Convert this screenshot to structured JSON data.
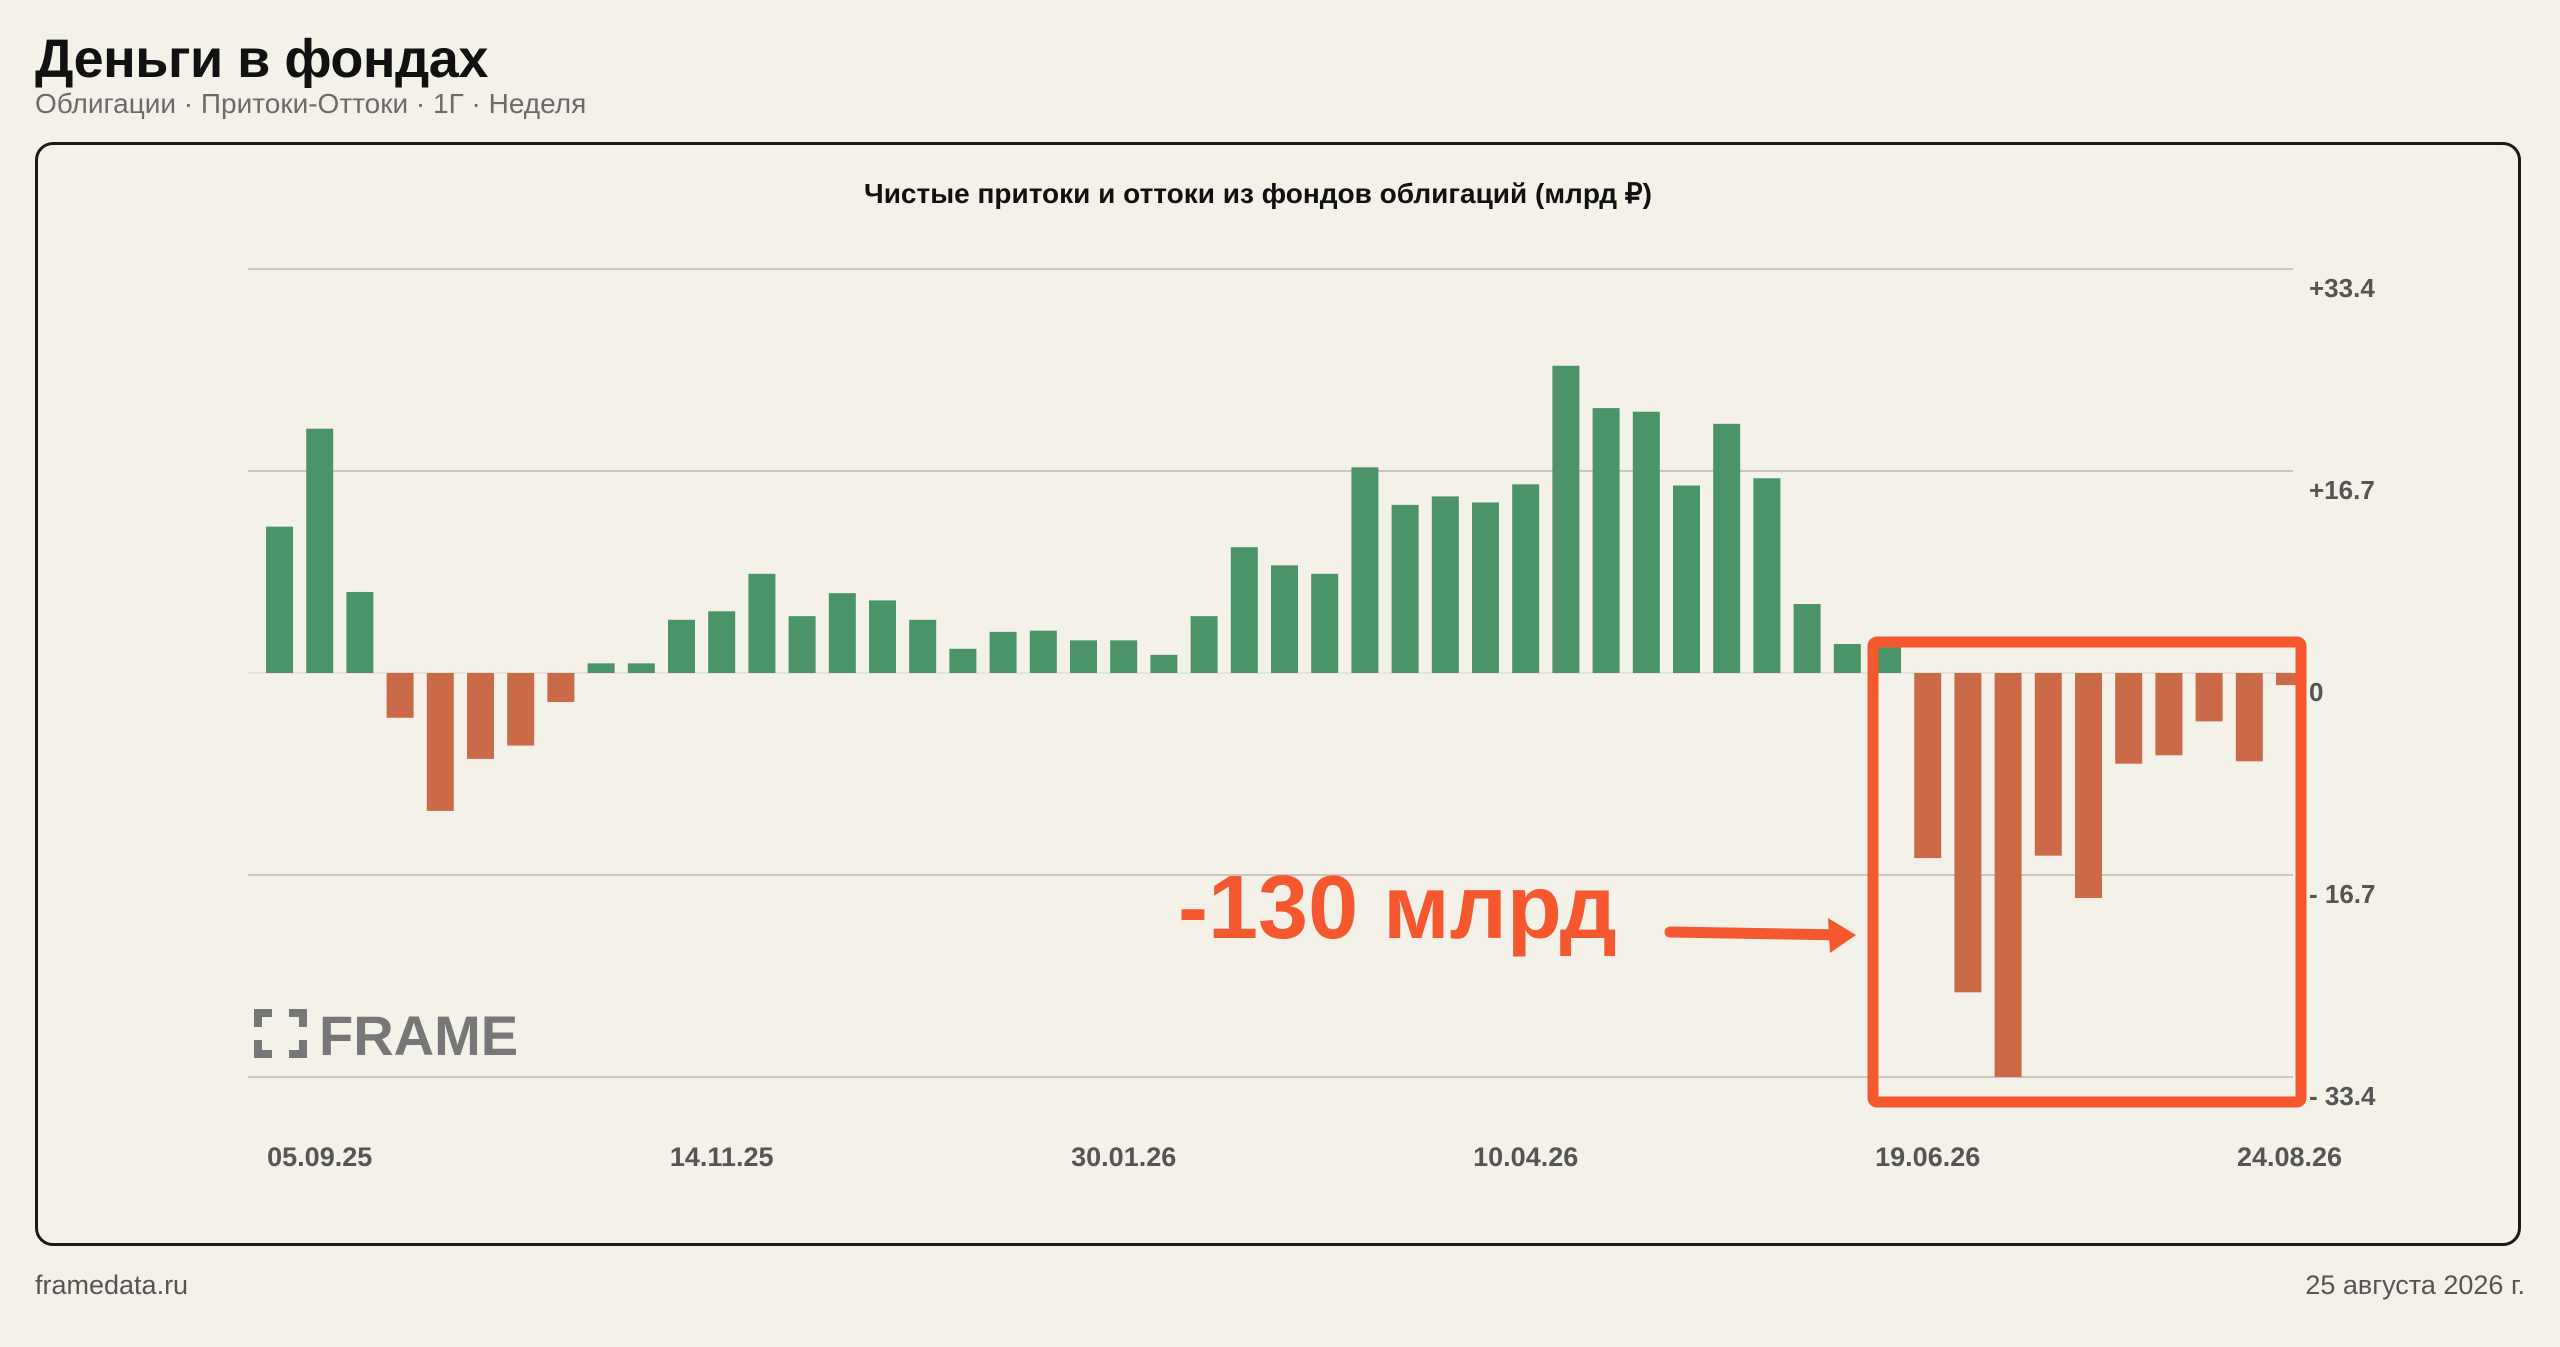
{
  "header": {
    "title": "Деньги в фондах",
    "subtitle": "Облигации · Притоки-Оттоки · 1Г · Неделя"
  },
  "footer": {
    "site": "framedata.ru",
    "date": "25 августа 2026 г."
  },
  "watermark": {
    "text": "FRAME"
  },
  "annotation": {
    "text": "-130 млрд",
    "color": "#f5582e"
  },
  "colors": {
    "positive": "#4a9467",
    "negative": "#cb6a48",
    "grid": "#c9c6bd",
    "axis_text": "#555555"
  },
  "chart_data": {
    "type": "bar",
    "title": "Чистые притоки и оттоки из фондов облигаций (млрд ₽)",
    "xlabel": "",
    "ylabel": "",
    "ylim": [
      -33.4,
      33.4
    ],
    "y_ticks": [
      33.4,
      16.7,
      0,
      -16.7,
      -33.4
    ],
    "y_tick_labels": [
      "+33.4",
      "+16.7",
      "0",
      "- 16.7",
      "- 33.4"
    ],
    "x_tick_labels": [
      "05.09.25",
      "14.11.25",
      "30.01.26",
      "10.04.26",
      "19.06.26",
      "24.08.26"
    ],
    "x_tick_label_indices": [
      1,
      11,
      21,
      31,
      41,
      50
    ],
    "grid": true,
    "values": [
      12.1,
      20.2,
      6.7,
      -3.7,
      -11.4,
      -7.1,
      -6.0,
      -2.4,
      0.8,
      0.8,
      4.4,
      5.1,
      8.2,
      4.7,
      6.6,
      6.0,
      4.4,
      2.0,
      3.4,
      3.5,
      2.7,
      2.7,
      1.5,
      4.7,
      10.4,
      8.9,
      8.2,
      17.0,
      13.9,
      14.6,
      14.1,
      15.6,
      25.4,
      21.9,
      21.6,
      15.5,
      20.6,
      16.1,
      5.7,
      2.4,
      2.8,
      -15.3,
      -26.4,
      -33.4,
      -15.1,
      -18.6,
      -7.5,
      -6.8,
      -4.0,
      -7.3,
      -1.0
    ]
  }
}
